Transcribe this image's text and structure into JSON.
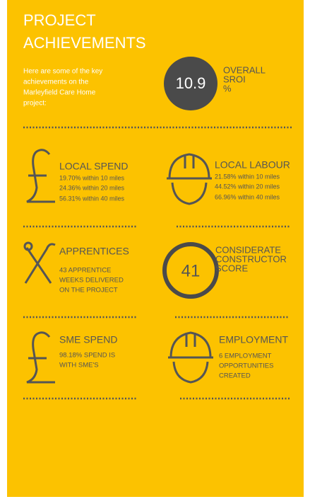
{
  "header": {
    "title": [
      "PROJECT",
      "ACHIEVEMENTS"
    ],
    "intro": [
      "Here are some of the key",
      "achievements on the",
      "Marleyfield Care Home",
      "project:"
    ]
  },
  "sroi": {
    "value": "10.9",
    "label": [
      "OVERALL",
      "SROI",
      "%"
    ]
  },
  "sections": [
    {
      "title": "LOCAL SPEND",
      "lines": [
        "19.70% within 10 miles",
        "24.36% within 20 miles",
        "56.31% within 40 miles"
      ]
    },
    {
      "title": "LOCAL LABOUR",
      "lines": [
        "21.58% within 10 miles",
        "44.52% within 20 miles",
        "66.96% within 40 miles"
      ]
    },
    {
      "title": "APPRENTICES",
      "lines": [
        "43 APPRENTICE",
        "WEEKS DELIVERED",
        "ON THE PROJECT"
      ]
    },
    {
      "value": "41",
      "title_lines": [
        "CONSIDERATE",
        "CONSTRUCTOR",
        "SCORE"
      ]
    },
    {
      "title": "SME SPEND",
      "lines": [
        "98.18% SPEND IS",
        "WITH SME'S"
      ]
    },
    {
      "title": "EMPLOYMENT",
      "lines": [
        "6 EMPLOYMENT",
        "OPPORTUNITIES",
        "CREATED"
      ]
    }
  ]
}
